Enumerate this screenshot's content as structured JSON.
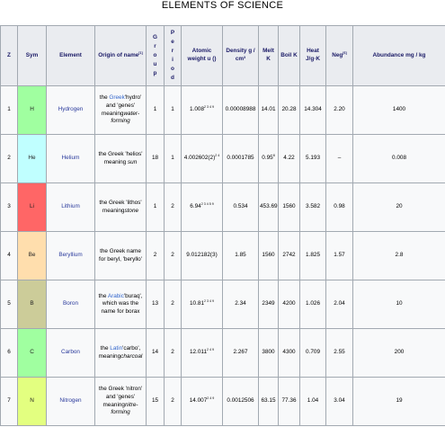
{
  "title": "ELEMENTS OF SCIENCE",
  "headers": {
    "z": "Z",
    "sym": "Sym",
    "element": "Element",
    "origin": "Origin of name",
    "origin_sup": "[1]",
    "group": "Group",
    "period": "Period",
    "atomic_weight": "Atomic weight u ()",
    "density": "Density g / cm³",
    "melt": "Melt K",
    "boil": "Boil K",
    "heat": "Heat J/g·K",
    "neg": "Neg",
    "neg_sup": "[6]",
    "abundance": "Abundance mg / kg"
  },
  "rows": [
    {
      "z": "1",
      "sym": "H",
      "sym_color": "#a0ffa0",
      "name": "Hydrogen",
      "origin_pre": "the ",
      "origin_link": "Greek",
      "origin_mid": "'hydro' and 'genes' meaning",
      "origin_em": "water-forming",
      "group": "1",
      "period": "1",
      "weight": "1.008",
      "weight_sup": "2 3 4 9",
      "density": "0.00008988",
      "melt": "14.01",
      "boil": "20.28",
      "heat": "14.304",
      "neg": "2.20",
      "abundance": "1400"
    },
    {
      "z": "2",
      "sym": "He",
      "sym_color": "#c0ffff",
      "name": "Helium",
      "origin_pre": "the Greek 'helios' meaning ",
      "origin_link": "",
      "origin_mid": "",
      "origin_em": "sun",
      "group": "18",
      "period": "1",
      "weight": "4.002602(2)",
      "weight_sup": "2 4",
      "density": "0.0001785",
      "melt": "0.95",
      "melt_sup": "8",
      "boil": "4.22",
      "heat": "5.193",
      "neg": "–",
      "abundance": "0.008"
    },
    {
      "z": "3",
      "sym": "Li",
      "sym_color": "#ff6666",
      "name": "Lithium",
      "origin_pre": "the Greek 'lithos' meaning",
      "origin_link": "",
      "origin_mid": "",
      "origin_em": "stone",
      "group": "1",
      "period": "2",
      "weight": "6.94",
      "weight_sup": "2 3 4 5 9",
      "density": "0.534",
      "melt": "453.69",
      "boil": "1560",
      "heat": "3.582",
      "neg": "0.98",
      "abundance": "20"
    },
    {
      "z": "4",
      "sym": "Be",
      "sym_color": "#ffdead",
      "name": "Beryllium",
      "origin_pre": "the Greek name for beryl, 'beryllo'",
      "origin_link": "",
      "origin_mid": "",
      "origin_em": "",
      "group": "2",
      "period": "2",
      "weight": "9.012182(3)",
      "weight_sup": "",
      "density": "1.85",
      "melt": "1560",
      "boil": "2742",
      "heat": "1.825",
      "neg": "1.57",
      "abundance": "2.8"
    },
    {
      "z": "5",
      "sym": "B",
      "sym_color": "#cccc99",
      "name": "Boron",
      "origin_pre": "the ",
      "origin_link": "Arabic",
      "origin_mid": "'buraq', which was the name for borax",
      "origin_em": "",
      "group": "13",
      "period": "2",
      "weight": "10.81",
      "weight_sup": "2 3 4 9",
      "density": "2.34",
      "melt": "2349",
      "boil": "4200",
      "heat": "1.026",
      "neg": "2.04",
      "abundance": "10"
    },
    {
      "z": "6",
      "sym": "C",
      "sym_color": "#a0ffa0",
      "name": "Carbon",
      "origin_pre": "the ",
      "origin_link": "Latin",
      "origin_mid": "'carbo', meaning",
      "origin_em": "charcoal",
      "group": "14",
      "period": "2",
      "weight": "12.011",
      "weight_sup": "2 4 9",
      "density": "2.267",
      "melt": "3800",
      "boil": "4300",
      "heat": "0.709",
      "neg": "2.55",
      "abundance": "200"
    },
    {
      "z": "7",
      "sym": "N",
      "sym_color": "#e3ff80",
      "name": "Nitrogen",
      "origin_pre": "the Greek 'nitron' and 'genes' meaning",
      "origin_link": "",
      "origin_mid": "",
      "origin_em": "nitre-forming",
      "group": "15",
      "period": "2",
      "weight": "14.007",
      "weight_sup": "2 4 9",
      "density": "0.0012506",
      "melt": "63.15",
      "boil": "77.36",
      "heat": "1.04",
      "neg": "3.04",
      "abundance": "19"
    }
  ]
}
